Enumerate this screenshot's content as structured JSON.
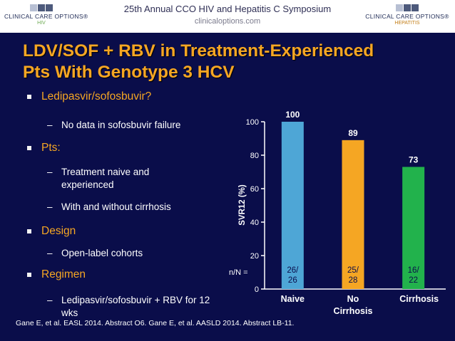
{
  "header": {
    "title": "25th Annual CCO HIV and Hepatitis C Symposium",
    "url": "clinicaloptions.com",
    "logo_left": {
      "name": "CLINICAL CARE OPTIONS®",
      "sub": "HIV"
    },
    "logo_right": {
      "name": "CLINICAL CARE OPTIONS®",
      "sub": "HEPATITIS"
    }
  },
  "slide": {
    "title_line1": "LDV/SOF + RBV in Treatment-Experienced",
    "title_line2": "Pts With Genotype 3 HCV",
    "bullets": [
      {
        "label": "Ledipasvir/sofosbuvir?",
        "subs": [
          "No data in sofosbuvir failure"
        ]
      },
      {
        "label": "Pts:",
        "subs": [
          "Treatment  naive and experienced",
          "With and without cirrhosis"
        ]
      },
      {
        "label": "Design",
        "subs": [
          "Open-label cohorts"
        ]
      },
      {
        "label": "Regimen",
        "subs": [
          "Ledipasvir/sofosbuvir + RBV for 12 wks"
        ]
      }
    ],
    "citation": "Gane E, et al. EASL 2014. Abstract O6. Gane E, et al. AASLD 2014. Abstract LB-11."
  },
  "chart_data": {
    "type": "bar",
    "categories": [
      "Naive",
      "No Cirrhosis",
      "Cirrhosis"
    ],
    "category_lines": [
      [
        "Naive"
      ],
      [
        "No",
        "Cirrhosis"
      ],
      [
        "Cirrhosis"
      ]
    ],
    "values": [
      100,
      89,
      73
    ],
    "value_labels": [
      "100",
      "89",
      "73"
    ],
    "counts": [
      [
        "26/",
        "26"
      ],
      [
        "25/",
        "28"
      ],
      [
        "16/",
        "22"
      ]
    ],
    "count_prefix": "n/N =",
    "colors": [
      "#4ea6d6",
      "#f5a623",
      "#22b24c"
    ],
    "ylabel": "SVR12 (%)",
    "yticks": [
      0,
      20,
      40,
      60,
      80,
      100
    ],
    "ylim": [
      0,
      100
    ],
    "grid": false
  }
}
